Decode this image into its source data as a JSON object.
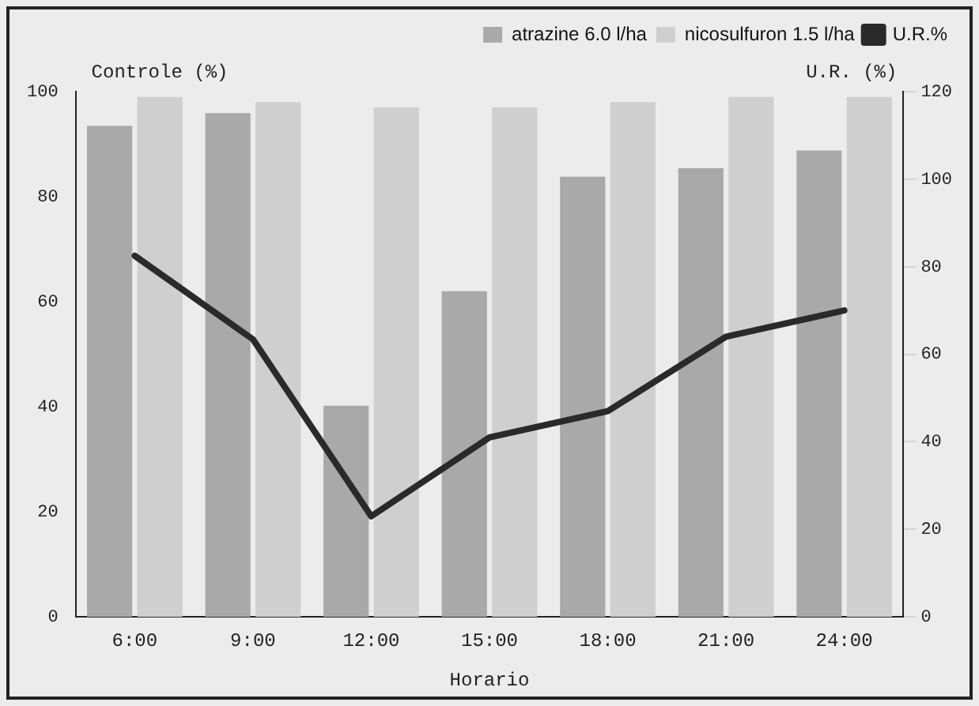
{
  "chart_data": {
    "type": "bar",
    "xlabel": "Horario",
    "ylabel": "Controle (%)",
    "y2label": "U.R. (%)",
    "categories": [
      "6:00",
      "9:00",
      "12:00",
      "15:00",
      "18:00",
      "21:00",
      "24:00"
    ],
    "series": [
      {
        "name": "atrazine 6.0 l/ha",
        "color": "#a9a9a9",
        "values": [
          93.5,
          95.9,
          40.2,
          62,
          83.8,
          85.4,
          88.8
        ]
      },
      {
        "name": "nicosulfuron 1.5 l/ha",
        "color": "#cfcfcf",
        "values": [
          99,
          98,
          97,
          97,
          98,
          99,
          99
        ]
      },
      {
        "name": "U.R.%",
        "type": "line",
        "axis": "y2",
        "color": "#2a2a2a",
        "values": [
          82.5,
          63.4,
          23,
          41,
          47,
          64,
          70
        ]
      }
    ],
    "ylim": [
      0,
      100
    ],
    "yticks": [
      0,
      20,
      40,
      60,
      80,
      100
    ],
    "y2lim": [
      0,
      120
    ],
    "y2ticks": [
      0,
      20,
      40,
      60,
      80,
      100,
      120
    ],
    "grid": false,
    "legend": "top right",
    "marker": "none"
  }
}
